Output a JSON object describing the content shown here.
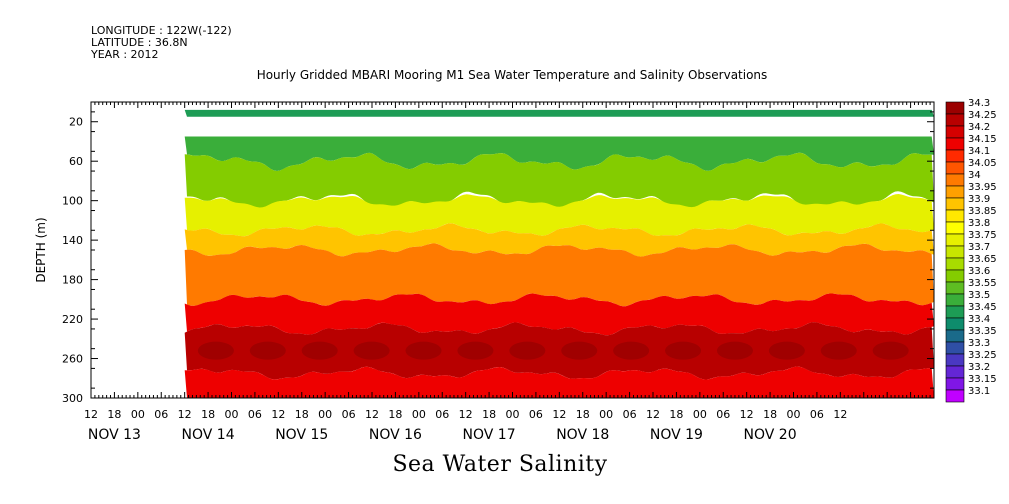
{
  "meta": {
    "longitude": "LONGITUDE : 122W(-122)",
    "latitude": "LATITUDE : 36.8N",
    "year": "YEAR : 2012"
  },
  "chart_data": {
    "type": "heatmap",
    "title": "Hourly Gridded MBARI Mooring M1 Sea Water Temperature and Salinity Observations",
    "variable_title": "Sea Water Salinity",
    "ylabel": "DEPTH (m)",
    "y_reversed": true,
    "ylim": [
      300,
      0
    ],
    "y_ticks": [
      20,
      60,
      100,
      140,
      180,
      220,
      260,
      300
    ],
    "x_range_hours": [
      -6,
      210
    ],
    "x_hour_labels": [
      "12",
      "18",
      "00",
      "06",
      "12",
      "18",
      "00",
      "06",
      "12",
      "18",
      "00",
      "06",
      "12",
      "18",
      "00",
      "06",
      "12",
      "18",
      "00",
      "06",
      "12",
      "18",
      "00",
      "06",
      "12",
      "18",
      "00",
      "06",
      "12",
      "18",
      "00",
      "06",
      "12"
    ],
    "x_day_labels": [
      "NOV 13",
      "NOV 14",
      "NOV 15",
      "NOV 16",
      "NOV 17",
      "NOV 18",
      "NOV 19",
      "NOV 20"
    ],
    "x_day_label_hours": [
      0,
      24,
      48,
      72,
      96,
      120,
      144,
      168
    ],
    "data_start_hour": 18,
    "data_gap_depths": [
      15,
      35
    ],
    "legend_levels": [
      "34.3",
      "34.25",
      "34.2",
      "34.15",
      "34.1",
      "34.05",
      "34",
      "33.95",
      "33.9",
      "33.85",
      "33.8",
      "33.75",
      "33.7",
      "33.65",
      "33.6",
      "33.55",
      "33.5",
      "33.45",
      "33.4",
      "33.35",
      "33.3",
      "33.25",
      "33.2",
      "33.15",
      "33.1"
    ],
    "legend_colors": [
      "#9b0000",
      "#b80000",
      "#d40000",
      "#ee0000",
      "#ff2a00",
      "#ff5500",
      "#ff7a00",
      "#ffa000",
      "#ffc400",
      "#ffe800",
      "#ffff00",
      "#e6f000",
      "#c8e600",
      "#a8dc00",
      "#84cc00",
      "#5ebd22",
      "#3aae3a",
      "#1d9c55",
      "#0e8c6c",
      "#1a6a8a",
      "#2f4fa6",
      "#4a38c2",
      "#6426d6",
      "#8016e6",
      "#c000ff"
    ],
    "series_depth_bands": [
      {
        "depth_top": 8,
        "depth_bottom": 15,
        "salinity": 33.45
      },
      {
        "depth_top": 35,
        "depth_bottom": 60,
        "salinity": 33.5
      },
      {
        "depth_top": 60,
        "depth_bottom": 100,
        "salinity": 33.6
      },
      {
        "depth_top": 100,
        "depth_bottom": 130,
        "salinity": 33.75
      },
      {
        "depth_top": 130,
        "depth_bottom": 150,
        "salinity": 33.9
      },
      {
        "depth_top": 150,
        "depth_bottom": 200,
        "salinity": 34.0
      },
      {
        "depth_top": 200,
        "depth_bottom": 230,
        "salinity": 34.15
      },
      {
        "depth_top": 230,
        "depth_bottom": 275,
        "salinity": 34.25
      },
      {
        "depth_top": 275,
        "depth_bottom": 300,
        "salinity": 34.15
      }
    ]
  }
}
